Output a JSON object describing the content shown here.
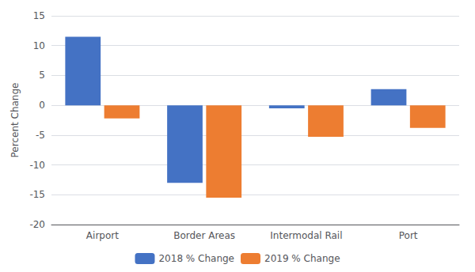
{
  "chart_data": {
    "type": "bar",
    "ylabel": "Percent Change",
    "categories": [
      "Airport",
      "Border Areas",
      "Intermodal Rail",
      "Port"
    ],
    "series": [
      {
        "name": "2018 % Change",
        "color": "#4472C4",
        "values": [
          11.5,
          -13.0,
          -0.5,
          2.7
        ]
      },
      {
        "name": "2019 % Change",
        "color": "#ED7D31",
        "values": [
          -2.2,
          -15.5,
          -5.3,
          -3.8
        ]
      }
    ],
    "ylim": [
      -20,
      15
    ],
    "yticks": [
      -20,
      -15,
      -10,
      -5,
      0,
      5,
      10,
      15
    ],
    "grid": true,
    "legend": "bottom"
  }
}
